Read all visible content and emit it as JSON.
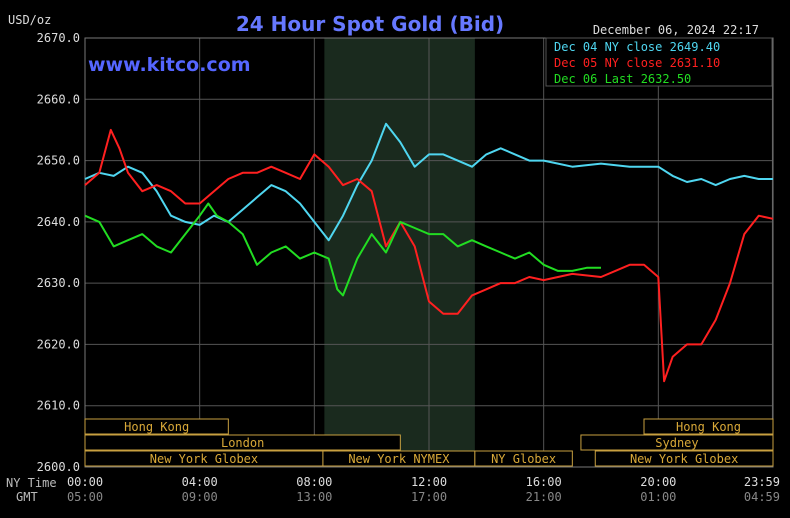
{
  "chart_data": {
    "type": "line",
    "title": "24 Hour Spot Gold (Bid)",
    "watermark": "www.kitco.com",
    "date_label": "December 06, 2024 22:17",
    "unit_label": "USD/oz",
    "ylim": [
      2600,
      2670
    ],
    "yticks": [
      "2670.0",
      "2660.0",
      "2650.0",
      "2640.0",
      "2630.0",
      "2620.0",
      "2610.0",
      "2600.0"
    ],
    "xticks_ny": [
      "00:00",
      "04:00",
      "08:00",
      "12:00",
      "16:00",
      "20:00",
      "23:59"
    ],
    "xticks_gmt": [
      "05:00",
      "09:00",
      "13:00",
      "17:00",
      "21:00",
      "01:00",
      "04:59"
    ],
    "xtick_hours": [
      0,
      4,
      8,
      12,
      16,
      20,
      23.98
    ],
    "x_row_labels": {
      "ny": "NY Time",
      "gmt": "GMT"
    },
    "shaded_session": [
      8.35,
      13.6
    ],
    "grid": true,
    "legend_position": "top-right",
    "legend": [
      {
        "label": "Dec 04 NY close 2649.40",
        "color": "#4fd6f0"
      },
      {
        "label": "Dec 05 NY close 2631.10",
        "color": "#ff2020"
      },
      {
        "label": "Dec 06 Last 2632.50",
        "color": "#22dd22"
      }
    ],
    "series": [
      {
        "name": "Dec 04 NY close 2649.40",
        "color": "#4fd6f0",
        "x": [
          0,
          0.5,
          1,
          1.5,
          2,
          2.5,
          3,
          3.5,
          4,
          4.5,
          5,
          5.5,
          6,
          6.5,
          7,
          7.5,
          8,
          8.5,
          9,
          9.5,
          10,
          10.5,
          11,
          11.5,
          12,
          12.5,
          13,
          13.5,
          14,
          14.5,
          15,
          15.5,
          16,
          16.5,
          17,
          18,
          19,
          20,
          20.5,
          21,
          21.5,
          22,
          22.5,
          23,
          23.5,
          24
        ],
        "y": [
          2647,
          2648,
          2647.5,
          2649,
          2648,
          2645,
          2641,
          2640,
          2639.5,
          2641,
          2640,
          2642,
          2644,
          2646,
          2645,
          2643,
          2640,
          2637,
          2641,
          2646,
          2650,
          2656,
          2653,
          2649,
          2651,
          2651,
          2650,
          2649,
          2651,
          2652,
          2651,
          2650,
          2650,
          2649.5,
          2649,
          2649.5,
          2649,
          2649,
          2647.5,
          2646.5,
          2647,
          2646,
          2647,
          2647.5,
          2647,
          2647
        ]
      },
      {
        "name": "Dec 05 NY close 2631.10",
        "color": "#ff2020",
        "x": [
          0,
          0.5,
          0.9,
          1.2,
          1.5,
          2,
          2.5,
          3,
          3.5,
          4,
          4.5,
          5,
          5.5,
          6,
          6.5,
          7,
          7.5,
          8,
          8.5,
          9,
          9.5,
          10,
          10.5,
          11,
          11.5,
          12,
          12.5,
          13,
          13.5,
          14,
          14.5,
          15,
          15.5,
          16,
          16.5,
          17,
          18,
          18.5,
          19,
          19.5,
          20,
          20.2,
          20.5,
          21,
          21.5,
          22,
          22.5,
          23,
          23.5,
          24
        ],
        "y": [
          2646,
          2648,
          2655,
          2652,
          2648,
          2645,
          2646,
          2645,
          2643,
          2643,
          2645,
          2647,
          2648,
          2648,
          2649,
          2648,
          2647,
          2651,
          2649,
          2646,
          2647,
          2645,
          2636,
          2640,
          2636,
          2627,
          2625,
          2625,
          2628,
          2629,
          2630,
          2630,
          2631,
          2630.5,
          2631,
          2631.5,
          2631,
          2632,
          2633,
          2633,
          2631,
          2614,
          2618,
          2620,
          2620,
          2624,
          2630,
          2638,
          2641,
          2640.5
        ]
      },
      {
        "name": "Dec 06 Last 2632.50",
        "color": "#22dd22",
        "x": [
          0,
          0.5,
          1,
          1.5,
          2,
          2.5,
          3,
          3.5,
          4,
          4.3,
          4.6,
          5,
          5.5,
          6,
          6.5,
          7,
          7.5,
          8,
          8.5,
          8.8,
          9,
          9.5,
          10,
          10.5,
          11,
          11.5,
          12,
          12.5,
          13,
          13.5,
          14,
          14.5,
          15,
          15.5,
          16,
          16.5,
          17,
          17.5,
          18
        ],
        "y": [
          2641,
          2640,
          2636,
          2637,
          2638,
          2636,
          2635,
          2638,
          2641,
          2643,
          2641,
          2640,
          2638,
          2633,
          2635,
          2636,
          2634,
          2635,
          2634,
          2629,
          2628,
          2634,
          2638,
          2635,
          2640,
          2639,
          2638,
          2638,
          2636,
          2637,
          2636,
          2635,
          2634,
          2635,
          2633,
          2632,
          2632,
          2632.5,
          2632.5
        ]
      }
    ],
    "sessions": [
      {
        "label": "Hong Kong",
        "row": 0,
        "start": 0,
        "end": 5.0
      },
      {
        "label": "Hong Kong",
        "row": 0,
        "start": 19.5,
        "end": 24
      },
      {
        "label": "London",
        "row": 1,
        "start": 0,
        "end": 11.0
      },
      {
        "label": "Sydney",
        "row": 1,
        "start": 17.3,
        "end": 24
      },
      {
        "label": "New York Globex",
        "row": 2,
        "start": 0,
        "end": 8.3
      },
      {
        "label": "New York NYMEX",
        "row": 2,
        "start": 8.3,
        "end": 13.6
      },
      {
        "label": "NY Globex",
        "row": 2,
        "start": 13.6,
        "end": 17.0
      },
      {
        "label": "New York Globex",
        "row": 2,
        "start": 17.8,
        "end": 24
      }
    ]
  }
}
